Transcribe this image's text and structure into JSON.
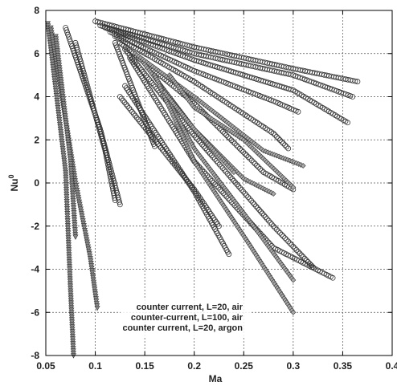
{
  "chart_data": {
    "type": "scatter",
    "xlabel": "Ma",
    "ylabel": "Nu",
    "ylabel_sup": "0",
    "xlim": [
      0.05,
      0.4
    ],
    "ylim": [
      -8,
      8
    ],
    "x_ticks": [
      0.05,
      0.1,
      0.15,
      0.2,
      0.25,
      0.3,
      0.35,
      0.4
    ],
    "x_tick_labels": [
      "0.05",
      "0.1",
      "0.15",
      "0.2",
      "0.25",
      "0.3",
      "0.35",
      "0.4"
    ],
    "y_ticks": [
      -8,
      -6,
      -4,
      -2,
      0,
      2,
      4,
      6,
      8
    ],
    "y_tick_labels": [
      "-8",
      "-6",
      "-4",
      "-2",
      "0",
      "2",
      "4",
      "6",
      "8"
    ],
    "grid": true,
    "legend_position": "bottom-right",
    "series": [
      {
        "name": "counter current, L=20, air",
        "marker": "circle",
        "curves": [
          [
            [
              0.1,
              7.5
            ],
            [
              0.2,
              6.3
            ],
            [
              0.3,
              5.3
            ],
            [
              0.365,
              4.7
            ]
          ],
          [
            [
              0.105,
              7.3
            ],
            [
              0.2,
              6.0
            ],
            [
              0.3,
              5.0
            ],
            [
              0.36,
              4.0
            ]
          ],
          [
            [
              0.11,
              7.2
            ],
            [
              0.2,
              5.7
            ],
            [
              0.3,
              4.3
            ],
            [
              0.355,
              2.8
            ]
          ],
          [
            [
              0.115,
              7.0
            ],
            [
              0.2,
              5.2
            ],
            [
              0.28,
              3.8
            ],
            [
              0.305,
              3.3
            ]
          ],
          [
            [
              0.12,
              6.8
            ],
            [
              0.2,
              4.7
            ],
            [
              0.28,
              2.3
            ],
            [
              0.295,
              1.6
            ]
          ],
          [
            [
              0.125,
              6.5
            ],
            [
              0.2,
              3.7
            ],
            [
              0.27,
              0.5
            ],
            [
              0.3,
              -0.3
            ]
          ],
          [
            [
              0.13,
              6.2
            ],
            [
              0.2,
              2.2
            ],
            [
              0.28,
              -2.0
            ],
            [
              0.32,
              -3.9
            ]
          ],
          [
            [
              0.135,
              5.8
            ],
            [
              0.2,
              1.0
            ],
            [
              0.28,
              -3.0
            ],
            [
              0.34,
              -4.4
            ]
          ],
          [
            [
              0.13,
              4.5
            ],
            [
              0.2,
              -0.4
            ],
            [
              0.235,
              -3.3
            ]
          ],
          [
            [
              0.125,
              4.0
            ],
            [
              0.2,
              -0.3
            ],
            [
              0.225,
              -2.0
            ]
          ],
          [
            [
              0.12,
              6.5
            ],
            [
              0.16,
              1.7
            ]
          ],
          [
            [
              0.07,
              7.2
            ],
            [
              0.105,
              2.5
            ],
            [
              0.125,
              -1.0
            ]
          ],
          [
            [
              0.08,
              6.5
            ],
            [
              0.11,
              1.5
            ],
            [
              0.12,
              -0.8
            ]
          ]
        ]
      },
      {
        "name": "counter-current, L=100, air",
        "marker": "triangle-down",
        "curves": [
          [
            [
              0.052,
              7.4
            ],
            [
              0.07,
              0.5
            ],
            [
              0.075,
              -5.0
            ],
            [
              0.078,
              -8.0
            ]
          ],
          [
            [
              0.055,
              7.2
            ],
            [
              0.08,
              0.0
            ],
            [
              0.095,
              -3.5
            ],
            [
              0.102,
              -5.8
            ]
          ],
          [
            [
              0.06,
              6.8
            ],
            [
              0.075,
              1.0
            ],
            [
              0.08,
              -2.5
            ]
          ]
        ]
      },
      {
        "name": "counter current, L=20, argon",
        "marker": "diamond",
        "curves": [
          [
            [
              0.14,
              6.0
            ],
            [
              0.2,
              4.0
            ],
            [
              0.27,
              1.5
            ],
            [
              0.31,
              0.8
            ]
          ],
          [
            [
              0.15,
              5.5
            ],
            [
              0.2,
              2.5
            ],
            [
              0.25,
              0.2
            ],
            [
              0.28,
              -0.5
            ]
          ],
          [
            [
              0.16,
              5.0
            ],
            [
              0.2,
              1.6
            ],
            [
              0.26,
              -2.0
            ],
            [
              0.3,
              -4.5
            ]
          ],
          [
            [
              0.165,
              4.5
            ],
            [
              0.2,
              1.0
            ],
            [
              0.255,
              -2.8
            ],
            [
              0.3,
              -6.0
            ]
          ],
          [
            [
              0.17,
              4.2
            ],
            [
              0.2,
              2.5
            ],
            [
              0.24,
              0.5
            ]
          ],
          [
            [
              0.175,
              5.0
            ],
            [
              0.2,
              3.5
            ],
            [
              0.25,
              2.0
            ],
            [
              0.3,
              -0.2
            ]
          ]
        ]
      }
    ]
  }
}
